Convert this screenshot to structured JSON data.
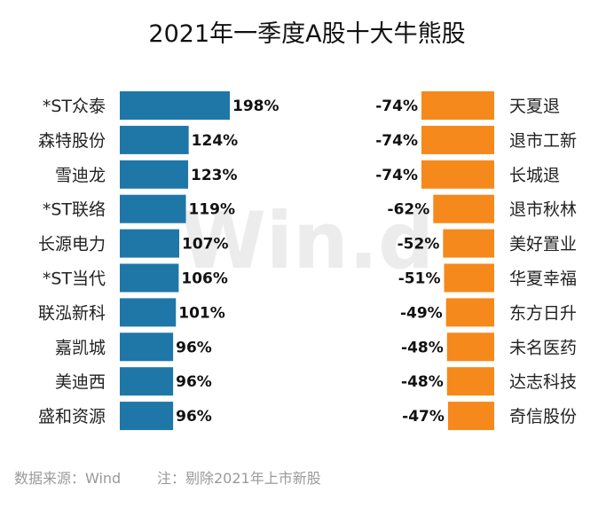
{
  "chart_data": {
    "type": "bar",
    "title": "2021年一季度A股十大牛熊股",
    "series": [
      {
        "name": "",
        "color": "#1f77a8",
        "categories": [
          "*ST众泰",
          "森特股份",
          "雪迪龙",
          "*ST联络",
          "长源电力",
          "*ST当代",
          "联泓新科",
          "嘉凯城",
          "美迪西",
          "盛和资源"
        ],
        "values": [
          198,
          124,
          123,
          119,
          107,
          106,
          101,
          96,
          96,
          96
        ],
        "labels": [
          "198%",
          "124%",
          "123%",
          "119%",
          "107%",
          "106%",
          "101%",
          "96%",
          "96%",
          "96%"
        ]
      },
      {
        "name": "",
        "color": "#f5891b",
        "categories": [
          "天夏退",
          "退市工新",
          "长城退",
          "退市秋林",
          "美好置业",
          "华夏幸福",
          "东方日升",
          "未名医药",
          "达志科技",
          "奇信股份"
        ],
        "values": [
          -74,
          -74,
          -74,
          -62,
          -52,
          -51,
          -49,
          -48,
          -48,
          -47
        ],
        "labels": [
          "-74%",
          "-74%",
          "-74%",
          "-62%",
          "-52%",
          "-51%",
          "-49%",
          "-48%",
          "-48%",
          "-47%"
        ]
      }
    ]
  },
  "watermark": "Win.d",
  "footer": {
    "source": "数据来源：Wind",
    "note": "注：剔除2021年上市新股"
  }
}
